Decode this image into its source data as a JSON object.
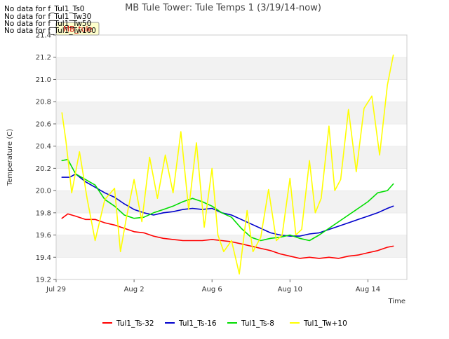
{
  "chart_data": {
    "type": "line",
    "title": "MB Tule Tower: Tule Temps 1 (3/19/14-now)",
    "xlabel": "Time",
    "ylabel": "Temperature (C)",
    "ylim": [
      19.2,
      21.4
    ],
    "xlim": [
      0,
      18
    ],
    "grid": true,
    "legend_position": "bottom",
    "x_ticks": [
      {
        "value": 0,
        "label": "Jul 29"
      },
      {
        "value": 4,
        "label": "Aug 2"
      },
      {
        "value": 8,
        "label": "Aug 6"
      },
      {
        "value": 12,
        "label": "Aug 10"
      },
      {
        "value": 16,
        "label": "Aug 14"
      }
    ],
    "y_ticks": [
      {
        "value": 19.2,
        "label": "19.2"
      },
      {
        "value": 19.4,
        "label": "19.4"
      },
      {
        "value": 19.6,
        "label": "19.6"
      },
      {
        "value": 19.8,
        "label": "19.8"
      },
      {
        "value": 20.0,
        "label": "20.0"
      },
      {
        "value": 20.2,
        "label": "20.2"
      },
      {
        "value": 20.4,
        "label": "20.4"
      },
      {
        "value": 20.6,
        "label": "20.6"
      },
      {
        "value": 20.8,
        "label": "20.8"
      },
      {
        "value": 21.0,
        "label": "21.0"
      },
      {
        "value": 21.2,
        "label": "21.2"
      },
      {
        "value": 21.4,
        "label": "21.4"
      }
    ],
    "no_data_messages": [
      "No data for f_Tul1_Ts0",
      "No data for f_Tul1_Tw30",
      "No data for f_Tul1_Tw50",
      "No data for f_Tul1_Tw100"
    ],
    "badge_label": "MB_tule",
    "series": [
      {
        "name": "Tul1_Ts-32",
        "color": "#ff0000",
        "x": [
          0.3,
          0.6,
          1.0,
          1.5,
          2.0,
          2.5,
          3.0,
          3.5,
          4.0,
          4.5,
          5.0,
          5.5,
          6.0,
          6.5,
          7.0,
          7.5,
          8.0,
          8.5,
          9.0,
          9.5,
          10.0,
          10.5,
          11.0,
          11.5,
          12.0,
          12.5,
          13.0,
          13.5,
          14.0,
          14.5,
          15.0,
          15.5,
          16.0,
          16.5,
          17.0,
          17.3
        ],
        "y": [
          19.75,
          19.79,
          19.77,
          19.74,
          19.74,
          19.71,
          19.69,
          19.66,
          19.63,
          19.62,
          19.59,
          19.57,
          19.56,
          19.55,
          19.55,
          19.55,
          19.56,
          19.55,
          19.54,
          19.52,
          19.5,
          19.48,
          19.46,
          19.43,
          19.41,
          19.39,
          19.4,
          19.39,
          19.4,
          19.39,
          19.41,
          19.42,
          19.44,
          19.46,
          19.49,
          19.5
        ]
      },
      {
        "name": "Tul1_Ts-16",
        "color": "#0000cc",
        "x": [
          0.3,
          0.7,
          1.0,
          1.5,
          2.0,
          2.5,
          3.0,
          3.5,
          4.0,
          4.5,
          5.0,
          5.5,
          6.0,
          6.5,
          7.0,
          7.5,
          8.0,
          8.5,
          9.0,
          9.5,
          10.0,
          10.5,
          11.0,
          11.5,
          12.0,
          12.5,
          13.0,
          13.5,
          14.0,
          14.5,
          15.0,
          15.5,
          16.0,
          16.5,
          17.0,
          17.3
        ],
        "y": [
          20.12,
          20.12,
          20.15,
          20.08,
          20.03,
          19.98,
          19.94,
          19.88,
          19.83,
          19.8,
          19.78,
          19.8,
          19.81,
          19.83,
          19.84,
          19.83,
          19.84,
          19.8,
          19.78,
          19.74,
          19.7,
          19.66,
          19.62,
          19.6,
          19.59,
          19.59,
          19.61,
          19.62,
          19.65,
          19.68,
          19.71,
          19.74,
          19.77,
          19.8,
          19.84,
          19.86
        ]
      },
      {
        "name": "Tul1_Ts-8",
        "color": "#00dd00",
        "x": [
          0.3,
          0.6,
          1.0,
          1.5,
          2.0,
          2.5,
          3.0,
          3.5,
          4.0,
          4.5,
          5.0,
          5.5,
          6.0,
          6.5,
          7.0,
          7.5,
          8.0,
          8.5,
          9.0,
          9.5,
          10.0,
          10.5,
          11.0,
          11.5,
          12.0,
          12.5,
          13.0,
          13.5,
          14.0,
          14.5,
          15.0,
          15.5,
          16.0,
          16.5,
          17.0,
          17.3
        ],
        "y": [
          20.27,
          20.28,
          20.15,
          20.1,
          20.05,
          19.92,
          19.86,
          19.78,
          19.75,
          19.76,
          19.8,
          19.83,
          19.86,
          19.9,
          19.93,
          19.9,
          19.86,
          19.8,
          19.76,
          19.66,
          19.58,
          19.55,
          19.57,
          19.58,
          19.6,
          19.57,
          19.55,
          19.6,
          19.66,
          19.72,
          19.78,
          19.84,
          19.9,
          19.98,
          20.0,
          20.06
        ]
      },
      {
        "name": "Tul1_Tw+10",
        "color": "#ffff00",
        "x": [
          0.3,
          0.5,
          0.8,
          1.2,
          1.6,
          2.0,
          2.5,
          3.0,
          3.3,
          3.6,
          4.0,
          4.4,
          4.8,
          5.2,
          5.6,
          6.0,
          6.4,
          6.8,
          7.2,
          7.6,
          8.0,
          8.3,
          8.6,
          9.0,
          9.4,
          9.8,
          10.1,
          10.5,
          10.9,
          11.3,
          11.6,
          12.0,
          12.3,
          12.6,
          13.0,
          13.3,
          13.6,
          14.0,
          14.3,
          14.6,
          15.0,
          15.4,
          15.8,
          16.2,
          16.6,
          17.0,
          17.3
        ],
        "y": [
          20.7,
          20.45,
          19.98,
          20.35,
          19.92,
          19.55,
          19.92,
          20.02,
          19.45,
          19.75,
          20.1,
          19.72,
          20.3,
          19.93,
          20.32,
          19.98,
          20.53,
          19.83,
          20.43,
          19.67,
          20.2,
          19.6,
          19.45,
          19.55,
          19.25,
          19.82,
          19.45,
          19.58,
          20.01,
          19.55,
          19.6,
          20.11,
          19.6,
          19.65,
          20.27,
          19.8,
          19.93,
          20.58,
          20.0,
          20.1,
          20.73,
          20.17,
          20.74,
          20.85,
          20.32,
          20.95,
          21.22
        ]
      }
    ]
  }
}
